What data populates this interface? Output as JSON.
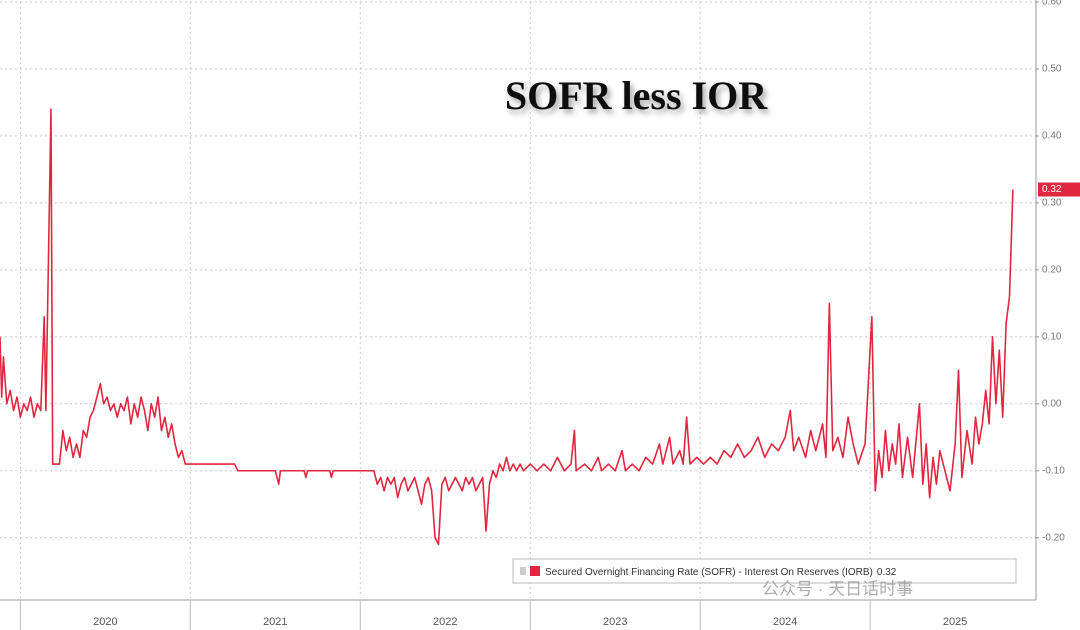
{
  "chart_data": {
    "type": "line",
    "title": "SOFR less IOR",
    "x": [
      2019.88,
      2019.89,
      2019.9,
      2019.92,
      2019.94,
      2019.96,
      2019.98,
      2020.0,
      2020.02,
      2020.04,
      2020.06,
      2020.08,
      2020.1,
      2020.12,
      2020.14,
      2020.15,
      2020.18,
      2020.19,
      2020.21,
      2020.23,
      2020.25,
      2020.27,
      2020.29,
      2020.31,
      2020.33,
      2020.35,
      2020.37,
      2020.39,
      2020.41,
      2020.43,
      2020.45,
      2020.47,
      2020.49,
      2020.51,
      2020.53,
      2020.55,
      2020.57,
      2020.59,
      2020.61,
      2020.63,
      2020.65,
      2020.67,
      2020.69,
      2020.71,
      2020.73,
      2020.75,
      2020.77,
      2020.79,
      2020.81,
      2020.83,
      2020.85,
      2020.87,
      2020.89,
      2020.91,
      2020.93,
      2020.95,
      2020.97,
      2021.1,
      2021.26,
      2021.28,
      2021.5,
      2021.52,
      2021.53,
      2021.67,
      2021.68,
      2021.69,
      2021.82,
      2021.83,
      2021.84,
      2022.08,
      2022.1,
      2022.12,
      2022.14,
      2022.16,
      2022.18,
      2022.2,
      2022.22,
      2022.24,
      2022.26,
      2022.28,
      2022.3,
      2022.32,
      2022.34,
      2022.36,
      2022.38,
      2022.4,
      2022.42,
      2022.44,
      2022.46,
      2022.48,
      2022.5,
      2022.52,
      2022.54,
      2022.56,
      2022.58,
      2022.6,
      2022.62,
      2022.64,
      2022.66,
      2022.68,
      2022.7,
      2022.72,
      2022.74,
      2022.76,
      2022.78,
      2022.8,
      2022.82,
      2022.84,
      2022.86,
      2022.88,
      2022.9,
      2022.92,
      2022.94,
      2022.96,
      2023.0,
      2023.04,
      2023.08,
      2023.12,
      2023.16,
      2023.2,
      2023.24,
      2023.26,
      2023.27,
      2023.32,
      2023.36,
      2023.4,
      2023.42,
      2023.46,
      2023.5,
      2023.54,
      2023.56,
      2023.6,
      2023.64,
      2023.68,
      2023.72,
      2023.76,
      2023.78,
      2023.82,
      2023.84,
      2023.88,
      2023.9,
      2023.92,
      2023.94,
      2023.98,
      2024.02,
      2024.06,
      2024.1,
      2024.14,
      2024.18,
      2024.22,
      2024.26,
      2024.3,
      2024.34,
      2024.38,
      2024.42,
      2024.46,
      2024.5,
      2024.53,
      2024.55,
      2024.58,
      2024.62,
      2024.65,
      2024.68,
      2024.72,
      2024.74,
      2024.76,
      2024.78,
      2024.81,
      2024.84,
      2024.87,
      2024.9,
      2024.93,
      2024.97,
      2025.01,
      2025.03,
      2025.05,
      2025.07,
      2025.09,
      2025.11,
      2025.13,
      2025.15,
      2025.17,
      2025.19,
      2025.22,
      2025.25,
      2025.29,
      2025.31,
      2025.33,
      2025.35,
      2025.37,
      2025.39,
      2025.41,
      2025.44,
      2025.47,
      2025.5,
      2025.52,
      2025.54,
      2025.57,
      2025.6,
      2025.62,
      2025.64,
      2025.66,
      2025.68,
      2025.7,
      2025.72,
      2025.74,
      2025.76,
      2025.78,
      2025.8,
      2025.82,
      2025.84
    ],
    "series": [
      {
        "name": "Secured Overnight Financing Rate (SOFR) - Interest On Reserves (IORB)",
        "color": "#e0273f",
        "values": [
          0.1,
          0.01,
          0.07,
          0.0,
          0.02,
          -0.01,
          0.01,
          -0.02,
          0.0,
          -0.01,
          0.01,
          -0.02,
          0.0,
          -0.01,
          0.13,
          -0.01,
          0.44,
          -0.09,
          -0.09,
          -0.09,
          -0.04,
          -0.07,
          -0.05,
          -0.08,
          -0.06,
          -0.08,
          -0.04,
          -0.05,
          -0.02,
          -0.01,
          0.01,
          0.03,
          0.0,
          0.01,
          -0.01,
          0.0,
          -0.02,
          0.0,
          -0.01,
          0.01,
          -0.03,
          0.0,
          -0.02,
          0.01,
          -0.01,
          -0.04,
          0.0,
          -0.02,
          0.01,
          -0.04,
          -0.02,
          -0.05,
          -0.03,
          -0.06,
          -0.08,
          -0.07,
          -0.09,
          -0.09,
          -0.09,
          -0.1,
          -0.1,
          -0.12,
          -0.1,
          -0.1,
          -0.11,
          -0.1,
          -0.1,
          -0.11,
          -0.1,
          -0.1,
          -0.12,
          -0.11,
          -0.13,
          -0.11,
          -0.12,
          -0.11,
          -0.14,
          -0.12,
          -0.11,
          -0.13,
          -0.12,
          -0.11,
          -0.13,
          -0.15,
          -0.12,
          -0.11,
          -0.13,
          -0.2,
          -0.21,
          -0.12,
          -0.11,
          -0.13,
          -0.12,
          -0.11,
          -0.12,
          -0.13,
          -0.11,
          -0.12,
          -0.11,
          -0.13,
          -0.12,
          -0.11,
          -0.19,
          -0.12,
          -0.1,
          -0.11,
          -0.09,
          -0.1,
          -0.08,
          -0.1,
          -0.09,
          -0.1,
          -0.09,
          -0.1,
          -0.09,
          -0.1,
          -0.09,
          -0.1,
          -0.08,
          -0.1,
          -0.09,
          -0.04,
          -0.1,
          -0.09,
          -0.1,
          -0.08,
          -0.1,
          -0.09,
          -0.1,
          -0.07,
          -0.1,
          -0.09,
          -0.1,
          -0.08,
          -0.09,
          -0.06,
          -0.09,
          -0.05,
          -0.09,
          -0.07,
          -0.09,
          -0.02,
          -0.09,
          -0.08,
          -0.09,
          -0.08,
          -0.09,
          -0.07,
          -0.08,
          -0.06,
          -0.08,
          -0.07,
          -0.05,
          -0.08,
          -0.06,
          -0.07,
          -0.05,
          -0.01,
          -0.07,
          -0.05,
          -0.08,
          -0.04,
          -0.07,
          -0.03,
          -0.08,
          0.15,
          -0.07,
          -0.05,
          -0.08,
          -0.02,
          -0.06,
          -0.09,
          -0.06,
          0.13,
          -0.13,
          -0.07,
          -0.11,
          -0.04,
          -0.1,
          -0.06,
          -0.09,
          -0.03,
          -0.11,
          -0.05,
          -0.11,
          0.0,
          -0.12,
          -0.06,
          -0.14,
          -0.08,
          -0.12,
          -0.07,
          -0.1,
          -0.13,
          -0.06,
          0.05,
          -0.11,
          -0.04,
          -0.09,
          -0.02,
          -0.06,
          -0.03,
          0.02,
          -0.03,
          0.1,
          0.0,
          0.08,
          -0.02,
          0.12,
          0.16,
          0.32
        ]
      }
    ],
    "xlim": [
      2019.88,
      2025.97
    ],
    "xticks": [
      2020,
      2021,
      2022,
      2023,
      2024,
      2025
    ],
    "ylim": [
      -0.29,
      0.6
    ],
    "yticks": [
      {
        "value": 0.6,
        "label": "0.60"
      },
      {
        "value": 0.5,
        "label": "0.50"
      },
      {
        "value": 0.4,
        "label": "0.40"
      },
      {
        "value": 0.3,
        "label": "0.30"
      },
      {
        "value": 0.2,
        "label": "0.20"
      },
      {
        "value": 0.1,
        "label": "0.10"
      },
      {
        "value": 0,
        "label": "0.00"
      },
      {
        "value": -0.1,
        "label": "-0.10"
      },
      {
        "value": -0.2,
        "label": "-0.20"
      }
    ],
    "grid": true,
    "legend": "lower right",
    "watermark": "公众号 · 天日话时事"
  }
}
